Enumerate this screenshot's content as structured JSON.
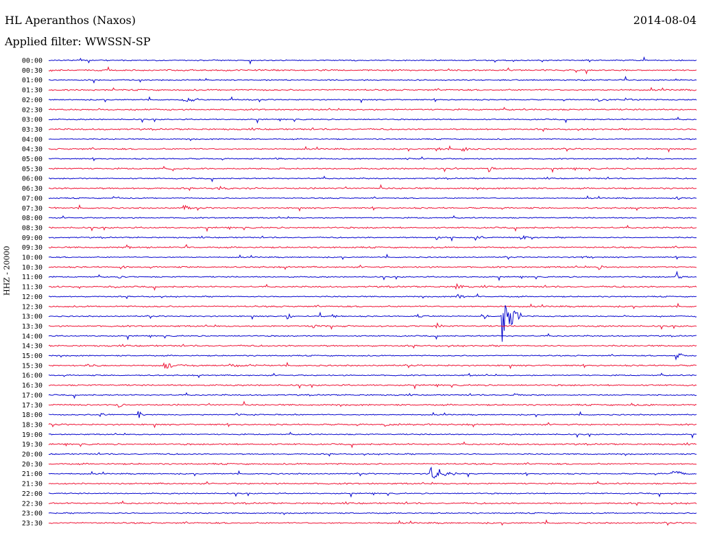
{
  "header": {
    "station": "HL Aperanthos (Naxos)",
    "filter": "Applied filter: WWSSN-SP",
    "date": "2014-08-04"
  },
  "chart_data": {
    "type": "line",
    "title": "HL Aperanthos (Naxos)",
    "subtitle": "Applied filter: WWSSN-SP",
    "ylabel": "HHZ - 20000",
    "xlabel": "",
    "row_labels": [
      "00:00",
      "00:30",
      "01:00",
      "01:30",
      "02:00",
      "02:30",
      "03:00",
      "03:30",
      "04:00",
      "04:30",
      "05:00",
      "05:30",
      "06:00",
      "06:30",
      "07:00",
      "07:30",
      "08:00",
      "08:30",
      "09:00",
      "09:30",
      "10:00",
      "10:30",
      "11:00",
      "11:30",
      "12:00",
      "12:30",
      "13:00",
      "13:30",
      "14:00",
      "14:30",
      "15:00",
      "15:30",
      "16:00",
      "16:30",
      "17:00",
      "17:30",
      "18:00",
      "18:30",
      "19:00",
      "19:30",
      "20:00",
      "20:30",
      "21:00",
      "21:30",
      "22:00",
      "22:30",
      "23:00",
      "23:30"
    ],
    "colors": [
      "#0000cc",
      "#ee1133"
    ],
    "grid": false,
    "legend": "none"
  }
}
